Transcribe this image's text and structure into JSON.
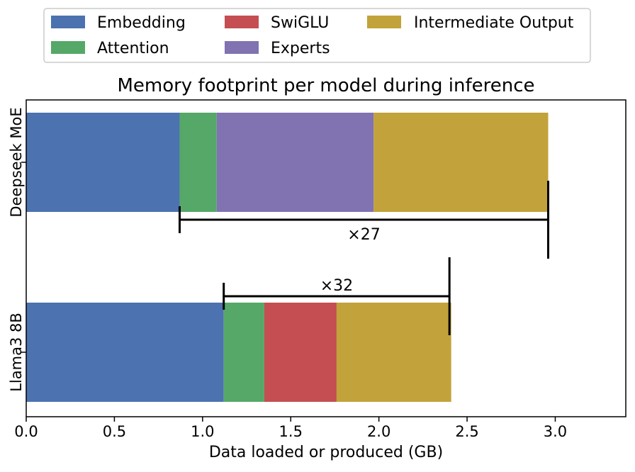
{
  "chart_data": {
    "type": "bar",
    "orientation": "horizontal",
    "stacked": true,
    "title": "Memory footprint per model during inference",
    "xlabel": "Data loaded or produced (GB)",
    "ylabel": "",
    "xlim": [
      0,
      3.4
    ],
    "xticks": [
      0.0,
      0.5,
      1.0,
      1.5,
      2.0,
      2.5,
      3.0
    ],
    "xtick_labels": [
      "0.0",
      "0.5",
      "1.0",
      "1.5",
      "2.0",
      "2.5",
      "3.0"
    ],
    "grid": false,
    "legend_position": "top",
    "categories": [
      "Deepseek MoE",
      "Llama3 8B"
    ],
    "series": [
      {
        "name": "Embedding",
        "color": "#4c72b0",
        "values": [
          0.87,
          1.12
        ]
      },
      {
        "name": "Attention",
        "color": "#55a868",
        "values": [
          0.21,
          0.23
        ]
      },
      {
        "name": "SwiGLU",
        "color": "#c44e52",
        "values": [
          0.0,
          0.41
        ]
      },
      {
        "name": "Experts",
        "color": "#8172b2",
        "values": [
          0.89,
          0.0
        ]
      },
      {
        "name": "Intermediate Output",
        "color": "#c2a23a",
        "values": [
          0.99,
          0.65
        ]
      }
    ],
    "legend": {
      "entries": [
        "Embedding",
        "SwiGLU",
        "Intermediate Output",
        "Attention",
        "Experts"
      ]
    },
    "annotations": [
      {
        "category": "Deepseek MoE",
        "label": "×27",
        "x_start": 0.87,
        "x_end": 2.96,
        "placement": "below"
      },
      {
        "category": "Llama3 8B",
        "label": "×32",
        "x_start": 1.12,
        "x_end": 2.4,
        "placement": "above"
      }
    ]
  }
}
